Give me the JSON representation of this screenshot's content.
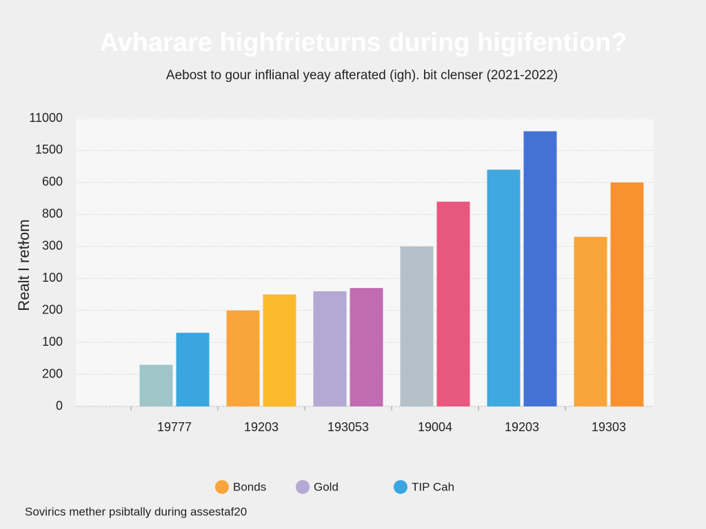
{
  "chart_data": {
    "type": "bar",
    "title": "Avharare highfrieturns during higifention?",
    "subtitle": "Aebost to gour inflianal yeay afterated (igh). bit clenser (2021-2022)",
    "y_label": "Realt I retɫom",
    "footer": "Sovirics mether psibtally during assestaf20",
    "categories": [
      "19777",
      "19203",
      "193053",
      "19004",
      "19203",
      "19303"
    ],
    "series": [
      {
        "colors": [
          "#9fc5c8",
          "#f9a53b",
          "#b3a9d3",
          "#b4c1c9",
          "#3ea8df",
          "#f9a53b"
        ],
        "values": [
          1.3,
          3.0,
          3.6,
          5.0,
          7.4,
          5.3
        ]
      },
      {
        "colors": [
          "#3aa5df",
          "#fbb92c",
          "#c16bb0",
          "#e8577e",
          "#4372d4",
          "#f89230"
        ],
        "values": [
          2.3,
          3.5,
          3.7,
          6.4,
          8.6,
          7.0
        ]
      }
    ],
    "legend": [
      {
        "name": "Bonds",
        "color": "#f9a53b"
      },
      {
        "name": "Gold",
        "color": "#b3a9d3"
      },
      {
        "name": "TIP Cah",
        "color": "#3aa5df"
      }
    ],
    "ylim": [
      0,
      9
    ],
    "yticks": [
      {
        "value": 0,
        "label": "0"
      },
      {
        "value": 1,
        "label": "200"
      },
      {
        "value": 2,
        "label": "100"
      },
      {
        "value": 3,
        "label": "200"
      },
      {
        "value": 4,
        "label": "100"
      },
      {
        "value": 5,
        "label": "300"
      },
      {
        "value": 6,
        "label": "800"
      },
      {
        "value": 7,
        "label": "600"
      },
      {
        "value": 8,
        "label": "1500"
      },
      {
        "value": 9,
        "label": "11000"
      }
    ],
    "grid": true
  }
}
